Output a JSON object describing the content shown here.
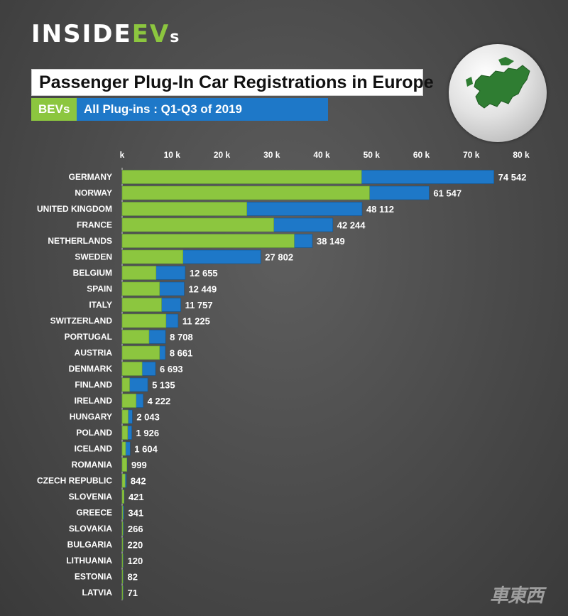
{
  "brand": {
    "logo_part1": "INSIDE",
    "logo_part2": "EV",
    "logo_part3": "s",
    "logo_text": "INSIDEEVs"
  },
  "watermark_text": "車東西",
  "colors": {
    "bev": "#8cc63f",
    "all_plugins": "#1e78c8",
    "background": "#4a4a4a",
    "text": "#ffffff"
  },
  "icons": {
    "globe": "europe-globe-icon"
  },
  "chart_data": {
    "type": "bar",
    "orientation": "horizontal",
    "title": "Passenger Plug-In Car Registrations in Europe",
    "subtitle": "All Plug-ins : Q1-Q3  of 2019",
    "legend": [
      {
        "name": "BEVs",
        "color": "#8cc63f"
      },
      {
        "name": "All Plug-ins : Q1-Q3  of 2019",
        "color": "#1e78c8"
      }
    ],
    "legend_placement": "top-left",
    "xlim": [
      0,
      80000
    ],
    "x_ticks": [
      0,
      10000,
      20000,
      30000,
      40000,
      50000,
      60000,
      70000,
      80000
    ],
    "x_tick_labels": [
      "k",
      "10 k",
      "20 k",
      "30 k",
      "40 k",
      "50 k",
      "60 k",
      "70 k",
      "80 k"
    ],
    "xlabel": "",
    "ylabel": "",
    "grid": false,
    "categories": [
      "GERMANY",
      "NORWAY",
      "UNITED KINGDOM",
      "FRANCE",
      "NETHERLANDS",
      "SWEDEN",
      "BELGIUM",
      "SPAIN",
      "ITALY",
      "SWITZERLAND",
      "PORTUGAL",
      "AUSTRIA",
      "DENMARK",
      "FINLAND",
      "IRELAND",
      "HUNGARY",
      "POLAND",
      "ICELAND",
      "ROMANIA",
      "CZECH REPUBLIC",
      "SLOVENIA",
      "GREECE",
      "SLOVAKIA",
      "BULGARIA",
      "LITHUANIA",
      "ESTONIA",
      "LATVIA"
    ],
    "series": [
      {
        "name": "BEVs",
        "values": [
          48000,
          49600,
          25000,
          30400,
          34500,
          12200,
          6800,
          7500,
          7900,
          8800,
          5400,
          7500,
          4000,
          1500,
          2800,
          1200,
          1100,
          700,
          950,
          600,
          380,
          150,
          150,
          150,
          80,
          40,
          50
        ]
      },
      {
        "name": "All Plug-ins : Q1-Q3  of 2019",
        "values": [
          74542,
          61547,
          48112,
          42244,
          38149,
          27802,
          12655,
          12449,
          11757,
          11225,
          8708,
          8661,
          6693,
          5135,
          4222,
          2043,
          1926,
          1604,
          999,
          842,
          421,
          341,
          266,
          220,
          120,
          82,
          71
        ]
      }
    ],
    "value_labels": [
      "74 542",
      "61 547",
      "48 112",
      "42 244",
      "38 149",
      "27 802",
      "12 655",
      "12 449",
      "11 757",
      "11 225",
      "8 708",
      "8 661",
      "6 693",
      "5 135",
      "4 222",
      "2 043",
      "1 926",
      "1 604",
      "999",
      "842",
      "421",
      "341",
      "266",
      "220",
      "120",
      "82",
      "71"
    ]
  }
}
